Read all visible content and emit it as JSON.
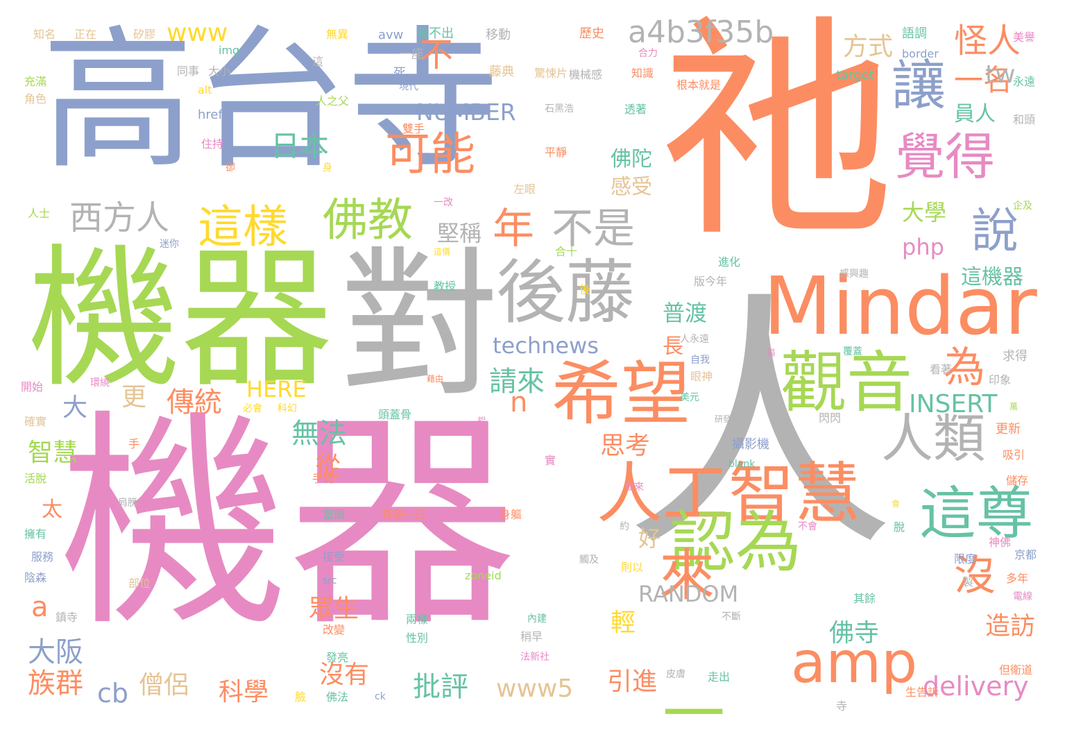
{
  "palette": {
    "orange": "#fc8d62",
    "blue": "#8da0cb",
    "green": "#a6d854",
    "pink": "#e78ac3",
    "gray": "#b3b3b3",
    "teal": "#66c2a5",
    "tan": "#e5c494",
    "yellow": "#ffd92f"
  },
  "words": [
    {
      "text": "機器",
      "color": "pink"
    },
    {
      "text": "人",
      "color": "gray"
    },
    {
      "text": "祂",
      "color": "orange"
    },
    {
      "text": "機器",
      "color": "green"
    },
    {
      "text": "高台寺",
      "color": "blue"
    },
    {
      "text": "對",
      "color": "gray"
    },
    {
      "text": "Mindar",
      "color": "orange"
    },
    {
      "text": "後藤",
      "color": "gray"
    },
    {
      "text": "希望",
      "color": "orange"
    },
    {
      "text": "觀音",
      "color": "green"
    },
    {
      "text": "人工智慧",
      "color": "orange"
    },
    {
      "text": "認為",
      "color": "green"
    },
    {
      "text": "這尊",
      "color": "teal"
    },
    {
      "text": "amp",
      "color": "orange"
    },
    {
      "text": "來",
      "color": "orange"
    },
    {
      "text": "人類",
      "color": "gray"
    },
    {
      "text": "讓",
      "color": "blue"
    },
    {
      "text": "覺得",
      "color": "pink"
    },
    {
      "text": "可能",
      "color": "orange"
    },
    {
      "text": "佛教",
      "color": "green"
    },
    {
      "text": "這樣",
      "color": "yellow"
    },
    {
      "text": "年",
      "color": "orange"
    },
    {
      "text": "不是",
      "color": "gray"
    },
    {
      "text": "說",
      "color": "blue"
    },
    {
      "text": "為",
      "color": "orange"
    },
    {
      "text": "沒",
      "color": "orange"
    },
    {
      "text": "一",
      "color": "green"
    },
    {
      "text": "a4b3f35b",
      "color": "gray"
    },
    {
      "text": "西方人",
      "color": "gray"
    },
    {
      "text": "不",
      "color": "orange"
    },
    {
      "text": "怪人",
      "color": "orange"
    },
    {
      "text": "一名",
      "color": "orange"
    },
    {
      "text": "tw",
      "color": "gray"
    },
    {
      "text": "員人",
      "color": "teal"
    },
    {
      "text": "方式",
      "color": "tan"
    },
    {
      "text": "www",
      "color": "yellow"
    },
    {
      "text": "NUMBER",
      "color": "blue"
    },
    {
      "text": "日本",
      "color": "teal"
    },
    {
      "text": "technews",
      "color": "blue"
    },
    {
      "text": "php",
      "color": "pink"
    },
    {
      "text": "大學",
      "color": "green"
    },
    {
      "text": "這機器",
      "color": "teal"
    },
    {
      "text": "堅稱",
      "color": "gray"
    },
    {
      "text": "普渡",
      "color": "teal"
    },
    {
      "text": "佛陀",
      "color": "teal"
    },
    {
      "text": "感受",
      "color": "tan"
    },
    {
      "text": "傳統",
      "color": "orange"
    },
    {
      "text": "更",
      "color": "tan"
    },
    {
      "text": "HERE",
      "color": "yellow"
    },
    {
      "text": "長",
      "color": "orange"
    },
    {
      "text": "請來",
      "color": "teal"
    },
    {
      "text": "n",
      "color": "orange"
    },
    {
      "text": "INSERT",
      "color": "teal"
    },
    {
      "text": "大",
      "color": "blue"
    },
    {
      "text": "無法",
      "color": "teal"
    },
    {
      "text": "從",
      "color": "orange"
    },
    {
      "text": "智慧",
      "color": "green"
    },
    {
      "text": "思考",
      "color": "orange"
    },
    {
      "text": "好",
      "color": "tan"
    },
    {
      "text": "太",
      "color": "orange"
    },
    {
      "text": "RANDOM",
      "color": "gray"
    },
    {
      "text": "a",
      "color": "orange"
    },
    {
      "text": "眾生",
      "color": "orange"
    },
    {
      "text": "輕",
      "color": "yellow"
    },
    {
      "text": "佛寺",
      "color": "teal"
    },
    {
      "text": "造訪",
      "color": "orange"
    },
    {
      "text": "大阪",
      "color": "blue"
    },
    {
      "text": "族群",
      "color": "orange"
    },
    {
      "text": "cb",
      "color": "blue"
    },
    {
      "text": "僧侶",
      "color": "tan"
    },
    {
      "text": "科學",
      "color": "orange"
    },
    {
      "text": "沒有",
      "color": "orange"
    },
    {
      "text": "批評",
      "color": "teal"
    },
    {
      "text": "www5",
      "color": "tan"
    },
    {
      "text": "引進",
      "color": "orange"
    },
    {
      "text": "delivery",
      "color": "pink"
    },
    {
      "text": "知名",
      "color": "tan"
    },
    {
      "text": "正在",
      "color": "tan"
    },
    {
      "text": "矽膠",
      "color": "tan"
    },
    {
      "text": "無異",
      "color": "yellow"
    },
    {
      "text": "avw",
      "color": "blue"
    },
    {
      "text": "看不出",
      "color": "teal"
    },
    {
      "text": "移動",
      "color": "gray"
    },
    {
      "text": "歷史",
      "color": "orange"
    },
    {
      "text": "語調",
      "color": "teal"
    },
    {
      "text": "美譽",
      "color": "pink"
    },
    {
      "text": "一座",
      "color": "gray"
    },
    {
      "text": "合力",
      "color": "pink"
    },
    {
      "text": "img",
      "color": "teal"
    },
    {
      "text": "border",
      "color": "blue"
    },
    {
      "text": "充滿",
      "color": "green"
    },
    {
      "text": "角色",
      "color": "tan"
    },
    {
      "text": "同事",
      "color": "gray"
    },
    {
      "text": "大小",
      "color": "gray"
    },
    {
      "text": "死",
      "color": "blue"
    },
    {
      "text": "這",
      "color": "gray"
    },
    {
      "text": "現代",
      "color": "blue"
    },
    {
      "text": "藤典",
      "color": "tan"
    },
    {
      "text": "驚悚片",
      "color": "tan"
    },
    {
      "text": "機械感",
      "color": "gray"
    },
    {
      "text": "知識",
      "color": "orange"
    },
    {
      "text": "target",
      "color": "teal"
    },
    {
      "text": "永遠",
      "color": "teal"
    },
    {
      "text": "和頭",
      "color": "gray"
    },
    {
      "text": "alt",
      "color": "yellow"
    },
    {
      "text": "人之父",
      "color": "green"
    },
    {
      "text": "根本就是",
      "color": "orange"
    },
    {
      "text": "石黑浩",
      "color": "gray"
    },
    {
      "text": "透著",
      "color": "teal"
    },
    {
      "text": "href",
      "color": "blue"
    },
    {
      "text": "雙手",
      "color": "orange"
    },
    {
      "text": "住持",
      "color": "pink"
    },
    {
      "text": "身",
      "color": "yellow"
    },
    {
      "text": "平靜",
      "color": "orange"
    },
    {
      "text": "卻",
      "color": "orange"
    },
    {
      "text": "企及",
      "color": "green"
    },
    {
      "text": "左眼",
      "color": "tan"
    },
    {
      "text": "人士",
      "color": "green"
    },
    {
      "text": "一改",
      "color": "pink"
    },
    {
      "text": "迷你",
      "color": "blue"
    },
    {
      "text": "合十",
      "color": "green"
    },
    {
      "text": "進化",
      "color": "teal"
    },
    {
      "text": "這價",
      "color": "yellow"
    },
    {
      "text": "感興趣",
      "color": "gray"
    },
    {
      "text": "版今年",
      "color": "gray"
    },
    {
      "text": "教授",
      "color": "teal"
    },
    {
      "text": "後",
      "color": "yellow"
    },
    {
      "text": "人永遠",
      "color": "gray"
    },
    {
      "text": "自我",
      "color": "blue"
    },
    {
      "text": "驅",
      "color": "pink"
    },
    {
      "text": "覆蓋",
      "color": "teal"
    },
    {
      "text": "眼神",
      "color": "tan"
    },
    {
      "text": "求得",
      "color": "gray"
    },
    {
      "text": "看著",
      "color": "gray"
    },
    {
      "text": "開始",
      "color": "pink"
    },
    {
      "text": "環繞",
      "color": "pink"
    },
    {
      "text": "藉由",
      "color": "orange"
    },
    {
      "text": "美元",
      "color": "teal"
    },
    {
      "text": "印象",
      "color": "gray"
    },
    {
      "text": "必會",
      "color": "yellow"
    },
    {
      "text": "科幻",
      "color": "yellow"
    },
    {
      "text": "確實",
      "color": "tan"
    },
    {
      "text": "頭蓋骨",
      "color": "teal"
    },
    {
      "text": "鋁",
      "color": "pink"
    },
    {
      "text": "閃閃",
      "color": "gray"
    },
    {
      "text": "研發",
      "color": "gray"
    },
    {
      "text": "萬",
      "color": "green"
    },
    {
      "text": "更新",
      "color": "orange"
    },
    {
      "text": "手",
      "color": "orange"
    },
    {
      "text": "攝影機",
      "color": "blue"
    },
    {
      "text": "blank",
      "color": "teal"
    },
    {
      "text": "吸引",
      "color": "orange"
    },
    {
      "text": "盼",
      "color": "pink"
    },
    {
      "text": "實",
      "color": "pink"
    },
    {
      "text": "活脫",
      "color": "green"
    },
    {
      "text": "手臂",
      "color": "orange"
    },
    {
      "text": "看來",
      "color": "pink"
    },
    {
      "text": "儲存",
      "color": "orange"
    },
    {
      "text": "肩膀",
      "color": "gray"
    },
    {
      "text": "當頭",
      "color": "teal"
    },
    {
      "text": "有朝一日",
      "color": "orange"
    },
    {
      "text": "身軀",
      "color": "orange"
    },
    {
      "text": "會",
      "color": "yellow"
    },
    {
      "text": "擁有",
      "color": "teal"
    },
    {
      "text": "約",
      "color": "gray"
    },
    {
      "text": "不會",
      "color": "pink"
    },
    {
      "text": "脫",
      "color": "teal"
    },
    {
      "text": "接受",
      "color": "blue"
    },
    {
      "text": "神佛",
      "color": "pink"
    },
    {
      "text": "服務",
      "color": "blue"
    },
    {
      "text": "觸及",
      "color": "gray"
    },
    {
      "text": "限度",
      "color": "blue"
    },
    {
      "text": "京都",
      "color": "blue"
    },
    {
      "text": "陰森",
      "color": "blue"
    },
    {
      "text": "src",
      "color": "blue"
    },
    {
      "text": "則以",
      "color": "yellow"
    },
    {
      "text": "zoneid",
      "color": "green"
    },
    {
      "text": "部位",
      "color": "tan"
    },
    {
      "text": "多年",
      "color": "orange"
    },
    {
      "text": "製",
      "color": "gray"
    },
    {
      "text": "其餘",
      "color": "teal"
    },
    {
      "text": "電線",
      "color": "pink"
    },
    {
      "text": "鎮寺",
      "color": "gray"
    },
    {
      "text": "不斷",
      "color": "gray"
    },
    {
      "text": "內建",
      "color": "teal"
    },
    {
      "text": "改變",
      "color": "orange"
    },
    {
      "text": "兩樣",
      "color": "teal"
    },
    {
      "text": "性別",
      "color": "teal"
    },
    {
      "text": "稍早",
      "color": "gray"
    },
    {
      "text": "發亮",
      "color": "teal"
    },
    {
      "text": "法新社",
      "color": "pink"
    },
    {
      "text": "但衛道",
      "color": "orange"
    },
    {
      "text": "皮膚",
      "color": "gray"
    },
    {
      "text": "走出",
      "color": "teal"
    },
    {
      "text": "臉",
      "color": "yellow"
    },
    {
      "text": "佛法",
      "color": "teal"
    },
    {
      "text": "ck",
      "color": "blue"
    },
    {
      "text": "生告訴",
      "color": "orange"
    },
    {
      "text": "寺",
      "color": "gray"
    }
  ]
}
